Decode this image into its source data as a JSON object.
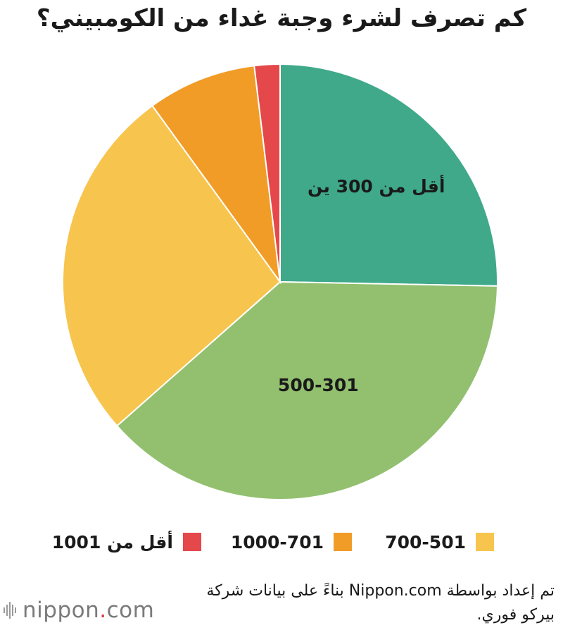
{
  "chart_data": {
    "type": "pie",
    "title": "كم تصرف لشرء وجبة غداء من  الكومبيني؟",
    "slices": [
      {
        "label": "أقل من 300 ين",
        "value": 25.3,
        "color": "#3FA98A",
        "show_label": true,
        "legend": false
      },
      {
        "label": "500-301",
        "value": 38.2,
        "color": "#92C06F",
        "show_label": true,
        "legend": false
      },
      {
        "label": "700-501",
        "value": 26.5,
        "color": "#F7C44E",
        "show_label": false,
        "legend": true
      },
      {
        "label": "1000-701",
        "value": 8.1,
        "color": "#F19C27",
        "show_label": false,
        "legend": true
      },
      {
        "label": "أقل من 1001",
        "value": 1.9,
        "color": "#E5484A",
        "show_label": false,
        "legend": true
      }
    ]
  },
  "source": {
    "line1": "تم إعداد بواسطة Nippon.com بناءً على بيانات شركة",
    "line2": "بيركو فوري."
  },
  "brand": {
    "name": "nippon",
    "dot": ".",
    "suffix": "com"
  }
}
